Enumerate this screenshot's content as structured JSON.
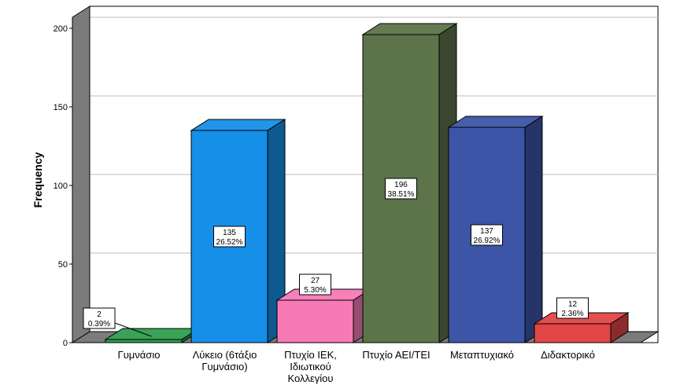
{
  "chart_data": {
    "type": "bar",
    "title": "",
    "xlabel": "",
    "ylabel": "Frequency",
    "ylim": [
      0,
      207
    ],
    "y_ticks": [
      "0",
      "50",
      "100",
      "150",
      "200"
    ],
    "grid": "horizontal",
    "style": "3d",
    "categories": [
      [
        "Γυμνάσιο"
      ],
      [
        "Λύκειο (6τάξιο",
        "Γυμνάσιο)"
      ],
      [
        "Πτυχίο ΙΕΚ,",
        "Ιδιωτικού",
        "Κολλεγίου"
      ],
      [
        "Πτυχίο ΑΕΙ/ΤΕΙ"
      ],
      [
        "Μεταπτυχιακό"
      ],
      [
        "Διδακτορικό"
      ]
    ],
    "values": [
      2,
      135,
      27,
      196,
      137,
      12
    ],
    "percentages": [
      "0.39%",
      "26.52%",
      "5.30%",
      "38.51%",
      "26.92%",
      "2.36%"
    ],
    "colors": [
      "#2f9e4f",
      "#168fe8",
      "#f57ab6",
      "#5d734a",
      "#3d55a6",
      "#e24545"
    ],
    "wall_color": "#7b7b7b"
  }
}
